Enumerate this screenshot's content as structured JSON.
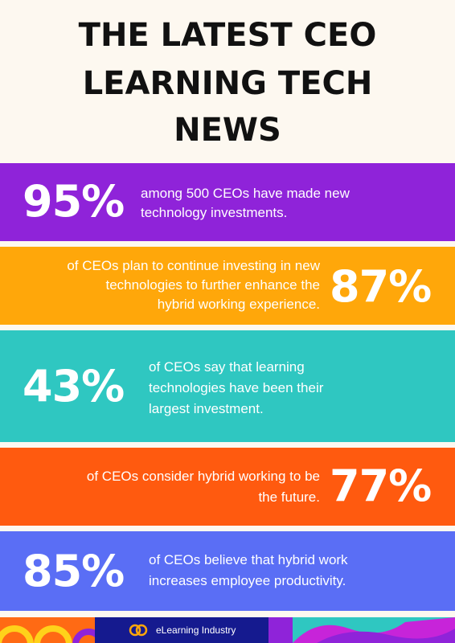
{
  "title": {
    "line1": "THE LATEST CEO",
    "line2": "LEARNING TECH",
    "line3": "NEWS"
  },
  "stats": [
    {
      "percent": "95%",
      "line1": "among 500 CEOs have made new",
      "line2": "technology investments.",
      "color": "#8f23d9"
    },
    {
      "percent": "87%",
      "line1": "of CEOs plan to continue investing in new",
      "line2": "technologies to further enhance the",
      "line3": "hybrid working experience.",
      "color": "#ffa70a"
    },
    {
      "percent": "43%",
      "line1": "of CEOs say that learning",
      "line2": "technologies have been their",
      "line3": "largest investment.",
      "color": "#2fc7c1"
    },
    {
      "percent": "77%",
      "line1": "of CEOs consider hybrid working to be",
      "line2": "the future.",
      "color": "#ff5a0f"
    },
    {
      "percent": "85%",
      "line1": "of CEOs believe that hybrid work",
      "line2": "increases employee productivity.",
      "color": "#5a6ef5"
    }
  ],
  "footer": {
    "brand": "eLearning Industry"
  },
  "icons": {
    "brand_logo": "elearning-industry-logo-icon"
  }
}
